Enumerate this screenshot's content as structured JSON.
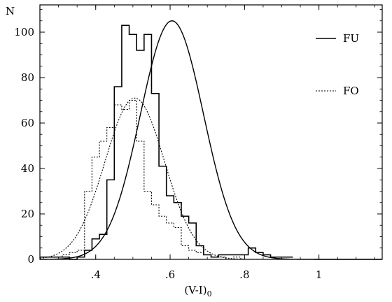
{
  "chart_data": {
    "type": "line",
    "xlabel": "(V-I)",
    "xlabel_subscript": "0",
    "ylabel": "N",
    "xlim": [
      0.25,
      1.17
    ],
    "ylim": [
      0,
      112
    ],
    "grid": false,
    "legend_position": "top-right",
    "x_ticks": [
      {
        "value": 0.4,
        "label": ".4"
      },
      {
        "value": 0.6,
        "label": ".6"
      },
      {
        "value": 0.8,
        "label": ".8"
      },
      {
        "value": 1.0,
        "label": "1"
      }
    ],
    "y_ticks": [
      {
        "value": 0,
        "label": "0"
      },
      {
        "value": 20,
        "label": "20"
      },
      {
        "value": 40,
        "label": "40"
      },
      {
        "value": 60,
        "label": "60"
      },
      {
        "value": 80,
        "label": "80"
      },
      {
        "value": 100,
        "label": "100"
      }
    ],
    "series": [
      {
        "name": "FU",
        "style": "solid",
        "histogram": {
          "bin_width": 0.02,
          "edges_start": 0.25,
          "counts": [
            1,
            1,
            1,
            1,
            0,
            1,
            4,
            9,
            11,
            35,
            76,
            103,
            99,
            92,
            99,
            73,
            41,
            28,
            25,
            19,
            16,
            6,
            2,
            1,
            2,
            2,
            2,
            2,
            5,
            3,
            2,
            1,
            1,
            1
          ]
        },
        "curve": {
          "mean": 0.605,
          "sigma": 0.085,
          "peak": 105
        }
      },
      {
        "name": "FO",
        "style": "dotted",
        "histogram": {
          "bin_width": 0.02,
          "edges_start": 0.25,
          "counts": [
            1,
            1,
            1,
            2,
            3,
            4,
            30,
            45,
            52,
            58,
            68,
            66,
            70,
            52,
            30,
            24,
            19,
            16,
            14,
            6,
            4,
            3,
            2,
            1,
            1,
            0,
            1,
            0,
            0,
            0,
            0,
            0,
            0,
            0
          ]
        },
        "curve": {
          "mean": 0.505,
          "sigma": 0.08,
          "peak": 71
        }
      }
    ]
  }
}
